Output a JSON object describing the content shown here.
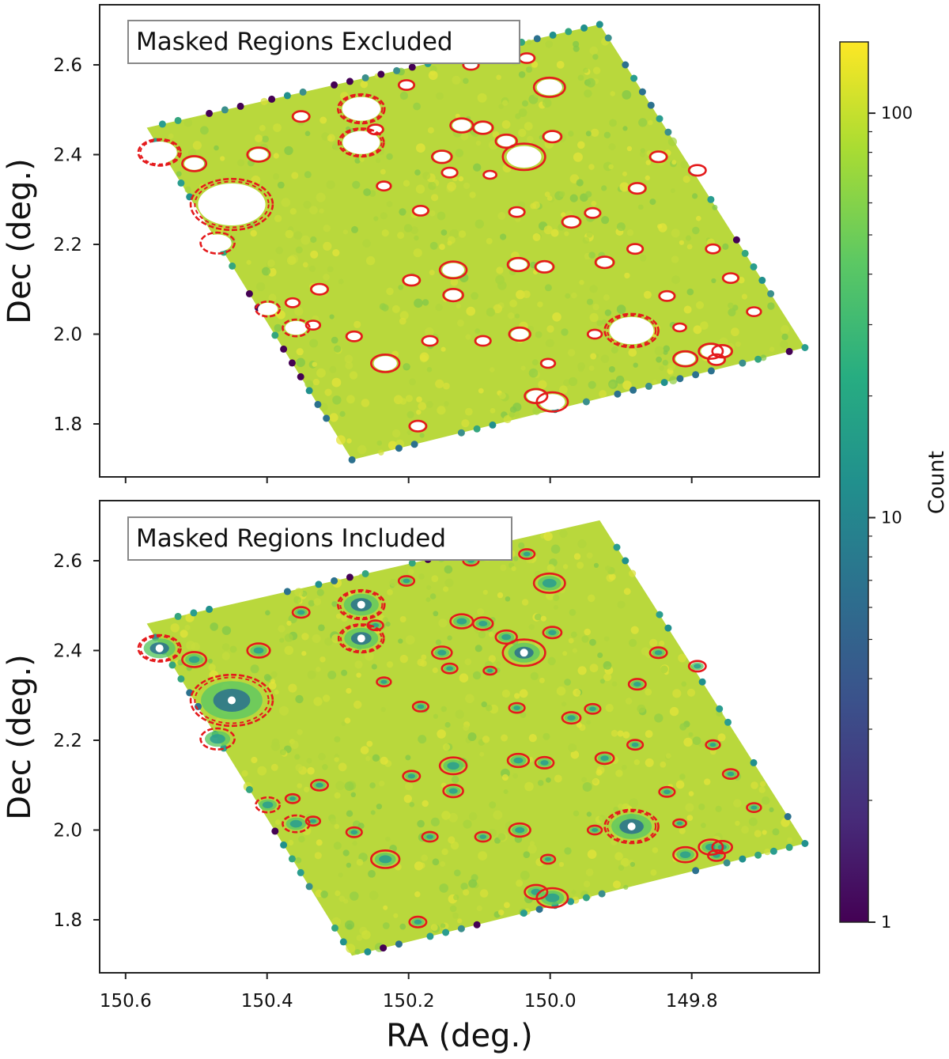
{
  "chart_data": [
    {
      "type": "heatmap",
      "subtype": "hexbin",
      "label": "Masked Regions Excluded",
      "ylabel": "Dec (deg.)",
      "xlabel": "",
      "x_reversed": true,
      "xlim": [
        150.63,
        149.62
      ],
      "ylim": [
        1.69,
        2.75
      ],
      "xticks": [
        "150.6",
        "150.4",
        "150.2",
        "150.0",
        "149.8"
      ],
      "yticks": [
        "1.8",
        "2.0",
        "2.2",
        "2.4",
        "2.6"
      ],
      "colorscale": "viridis",
      "typical_count": 100,
      "masked_interiors": "empty",
      "footprint_corners_ra_dec": [
        [
          150.57,
          2.46
        ],
        [
          149.93,
          2.69
        ],
        [
          149.64,
          1.97
        ],
        [
          150.28,
          1.72
        ]
      ],
      "mask_circles": [
        {
          "ra": 150.552,
          "dec": 2.405,
          "r": 0.03,
          "style": "dashed"
        },
        {
          "ra": 150.503,
          "dec": 2.38,
          "r": 0.017,
          "style": "solid"
        },
        {
          "ra": 150.45,
          "dec": 2.289,
          "r": 0.058,
          "style": "dashed"
        },
        {
          "ra": 150.47,
          "dec": 2.203,
          "r": 0.024,
          "style": "dashed"
        },
        {
          "ra": 150.412,
          "dec": 2.4,
          "r": 0.016,
          "style": "solid"
        },
        {
          "ra": 150.352,
          "dec": 2.485,
          "r": 0.012,
          "style": "solid"
        },
        {
          "ra": 150.267,
          "dec": 2.502,
          "r": 0.033,
          "style": "dashed"
        },
        {
          "ra": 150.267,
          "dec": 2.427,
          "r": 0.032,
          "style": "dashed"
        },
        {
          "ra": 150.247,
          "dec": 2.456,
          "r": 0.011,
          "style": "solid"
        },
        {
          "ra": 150.235,
          "dec": 2.33,
          "r": 0.01,
          "style": "solid"
        },
        {
          "ra": 150.203,
          "dec": 2.555,
          "r": 0.011,
          "style": "solid"
        },
        {
          "ra": 150.183,
          "dec": 2.275,
          "r": 0.011,
          "style": "solid"
        },
        {
          "ra": 150.153,
          "dec": 2.395,
          "r": 0.014,
          "style": "solid"
        },
        {
          "ra": 150.142,
          "dec": 2.36,
          "r": 0.011,
          "style": "solid"
        },
        {
          "ra": 150.125,
          "dec": 2.465,
          "r": 0.016,
          "style": "solid"
        },
        {
          "ra": 150.095,
          "dec": 2.46,
          "r": 0.014,
          "style": "solid"
        },
        {
          "ra": 150.085,
          "dec": 2.355,
          "r": 0.009,
          "style": "solid"
        },
        {
          "ra": 150.112,
          "dec": 2.6,
          "r": 0.011,
          "style": "solid"
        },
        {
          "ra": 150.062,
          "dec": 2.43,
          "r": 0.015,
          "style": "solid"
        },
        {
          "ra": 150.037,
          "dec": 2.395,
          "r": 0.03,
          "style": "solid"
        },
        {
          "ra": 150.047,
          "dec": 2.272,
          "r": 0.011,
          "style": "solid"
        },
        {
          "ra": 150.033,
          "dec": 2.615,
          "r": 0.011,
          "style": "solid"
        },
        {
          "ra": 150.001,
          "dec": 2.55,
          "r": 0.022,
          "style": "solid"
        },
        {
          "ra": 149.997,
          "dec": 2.44,
          "r": 0.013,
          "style": "solid"
        },
        {
          "ra": 149.94,
          "dec": 2.27,
          "r": 0.011,
          "style": "solid"
        },
        {
          "ra": 149.877,
          "dec": 2.325,
          "r": 0.012,
          "style": "solid"
        },
        {
          "ra": 149.847,
          "dec": 2.395,
          "r": 0.012,
          "style": "solid"
        },
        {
          "ra": 149.792,
          "dec": 2.365,
          "r": 0.012,
          "style": "solid"
        },
        {
          "ra": 150.137,
          "dec": 2.143,
          "r": 0.019,
          "style": "solid"
        },
        {
          "ra": 150.137,
          "dec": 2.087,
          "r": 0.014,
          "style": "solid"
        },
        {
          "ra": 150.196,
          "dec": 2.12,
          "r": 0.012,
          "style": "solid"
        },
        {
          "ra": 150.045,
          "dec": 2.155,
          "r": 0.015,
          "style": "solid"
        },
        {
          "ra": 150.008,
          "dec": 2.15,
          "r": 0.013,
          "style": "solid"
        },
        {
          "ra": 149.97,
          "dec": 2.25,
          "r": 0.013,
          "style": "solid"
        },
        {
          "ra": 149.923,
          "dec": 2.16,
          "r": 0.013,
          "style": "solid"
        },
        {
          "ra": 149.88,
          "dec": 2.19,
          "r": 0.011,
          "style": "solid"
        },
        {
          "ra": 149.835,
          "dec": 2.085,
          "r": 0.011,
          "style": "solid"
        },
        {
          "ra": 149.817,
          "dec": 2.015,
          "r": 0.009,
          "style": "solid"
        },
        {
          "ra": 149.77,
          "dec": 2.19,
          "r": 0.01,
          "style": "solid"
        },
        {
          "ra": 149.745,
          "dec": 2.125,
          "r": 0.011,
          "style": "solid"
        },
        {
          "ra": 149.712,
          "dec": 2.05,
          "r": 0.01,
          "style": "solid"
        },
        {
          "ra": 150.326,
          "dec": 2.1,
          "r": 0.012,
          "style": "solid"
        },
        {
          "ra": 150.364,
          "dec": 2.07,
          "r": 0.01,
          "style": "solid"
        },
        {
          "ra": 150.399,
          "dec": 2.056,
          "r": 0.017,
          "style": "dashed"
        },
        {
          "ra": 150.359,
          "dec": 2.014,
          "r": 0.019,
          "style": "dashed"
        },
        {
          "ra": 150.335,
          "dec": 2.02,
          "r": 0.01,
          "style": "solid"
        },
        {
          "ra": 150.277,
          "dec": 1.995,
          "r": 0.011,
          "style": "solid"
        },
        {
          "ra": 150.233,
          "dec": 1.935,
          "r": 0.02,
          "style": "solid"
        },
        {
          "ra": 150.17,
          "dec": 1.985,
          "r": 0.011,
          "style": "solid"
        },
        {
          "ra": 150.095,
          "dec": 1.985,
          "r": 0.011,
          "style": "solid"
        },
        {
          "ra": 150.043,
          "dec": 2.0,
          "r": 0.015,
          "style": "solid"
        },
        {
          "ra": 150.003,
          "dec": 1.935,
          "r": 0.01,
          "style": "solid"
        },
        {
          "ra": 149.937,
          "dec": 2.0,
          "r": 0.01,
          "style": "solid"
        },
        {
          "ra": 149.885,
          "dec": 2.008,
          "r": 0.038,
          "style": "dashed"
        },
        {
          "ra": 149.809,
          "dec": 1.945,
          "r": 0.017,
          "style": "solid"
        },
        {
          "ra": 149.773,
          "dec": 1.962,
          "r": 0.017,
          "style": "solid"
        },
        {
          "ra": 149.757,
          "dec": 1.962,
          "r": 0.014,
          "style": "solid"
        },
        {
          "ra": 149.765,
          "dec": 1.943,
          "r": 0.012,
          "style": "solid"
        },
        {
          "ra": 150.187,
          "dec": 1.795,
          "r": 0.012,
          "style": "solid"
        },
        {
          "ra": 150.02,
          "dec": 1.862,
          "r": 0.016,
          "style": "solid"
        },
        {
          "ra": 149.997,
          "dec": 1.849,
          "r": 0.022,
          "style": "solid"
        }
      ]
    },
    {
      "type": "heatmap",
      "subtype": "hexbin",
      "label": "Masked Regions Included",
      "ylabel": "Dec (deg.)",
      "xlabel": "RA (deg.)",
      "x_reversed": true,
      "xlim": [
        150.63,
        149.62
      ],
      "ylim": [
        1.69,
        2.75
      ],
      "xticks": [
        "150.6",
        "150.4",
        "150.2",
        "150.0",
        "149.8"
      ],
      "yticks": [
        "1.8",
        "2.0",
        "2.2",
        "2.4",
        "2.6"
      ],
      "colorscale": "viridis",
      "typical_count": 100,
      "masked_interiors": "depleted counts (~1-10)",
      "footprint_corners_ra_dec": [
        [
          150.57,
          2.46
        ],
        [
          149.93,
          2.69
        ],
        [
          149.64,
          1.97
        ],
        [
          150.28,
          1.72
        ]
      ],
      "mask_circles": "same as panel 1"
    }
  ],
  "colorbar": {
    "title": "Count",
    "scale": "log",
    "range": [
      1,
      150
    ],
    "tick_labels": [
      "1",
      "10",
      "100"
    ],
    "tick_values": [
      1,
      10,
      100
    ],
    "colormap": "viridis"
  }
}
